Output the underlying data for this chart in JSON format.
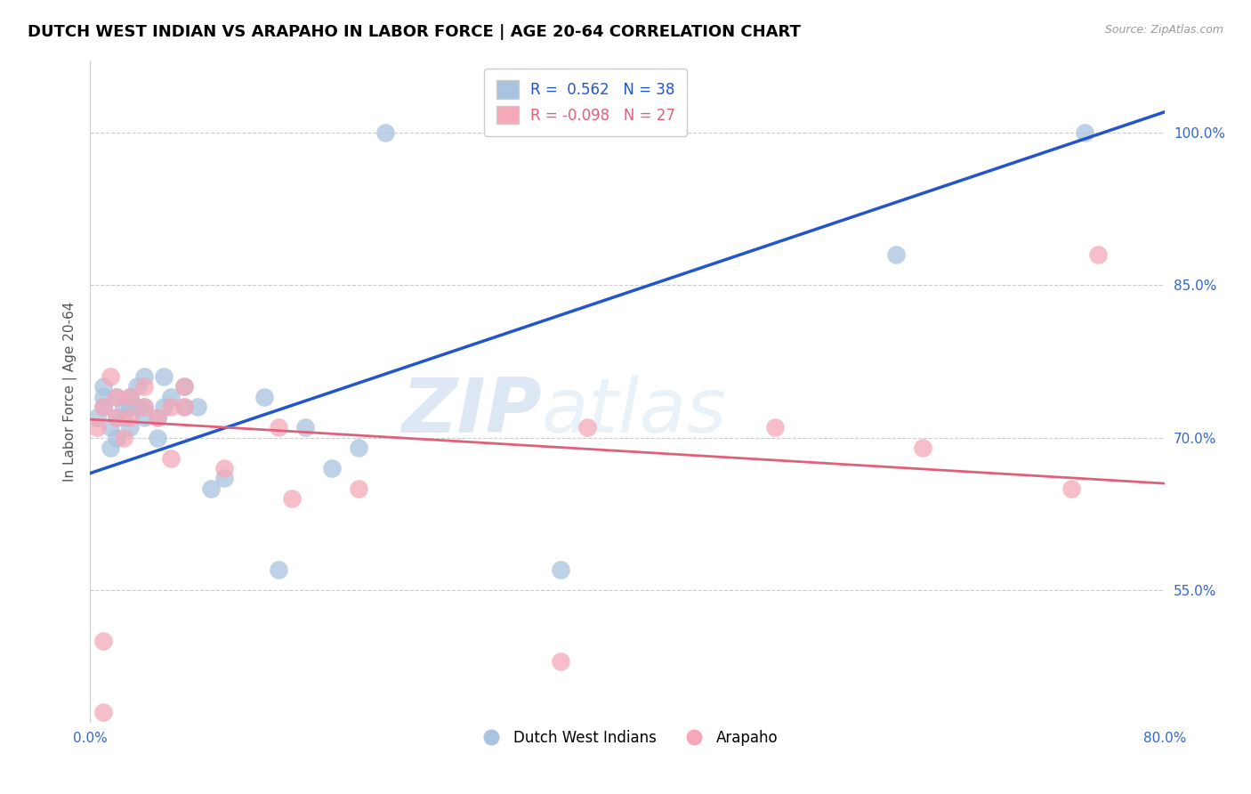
{
  "title": "DUTCH WEST INDIAN VS ARAPAHO IN LABOR FORCE | AGE 20-64 CORRELATION CHART",
  "source": "Source: ZipAtlas.com",
  "ylabel": "In Labor Force | Age 20-64",
  "xlim": [
    0.0,
    0.8
  ],
  "ylim": [
    0.42,
    1.07
  ],
  "xticks": [
    0.0,
    0.1,
    0.2,
    0.3,
    0.4,
    0.5,
    0.6,
    0.7,
    0.8
  ],
  "xticklabels": [
    "0.0%",
    "",
    "",
    "",
    "",
    "",
    "",
    "",
    "80.0%"
  ],
  "ytick_positions": [
    0.55,
    0.7,
    0.85,
    1.0
  ],
  "ytick_labels": [
    "55.0%",
    "70.0%",
    "85.0%",
    "100.0%"
  ],
  "blue_R": 0.562,
  "blue_N": 38,
  "pink_R": -0.098,
  "pink_N": 27,
  "blue_color": "#a8c4e0",
  "pink_color": "#f4a8b8",
  "blue_line_color": "#2255cc",
  "pink_line_color": "#e0607a",
  "blue_scatter_x": [
    0.005,
    0.01,
    0.01,
    0.01,
    0.015,
    0.015,
    0.02,
    0.02,
    0.02,
    0.025,
    0.025,
    0.03,
    0.03,
    0.03,
    0.035,
    0.035,
    0.04,
    0.04,
    0.04,
    0.05,
    0.05,
    0.055,
    0.055,
    0.06,
    0.07,
    0.07,
    0.08,
    0.09,
    0.1,
    0.13,
    0.14,
    0.16,
    0.18,
    0.2,
    0.22,
    0.35,
    0.6,
    0.74
  ],
  "blue_scatter_y": [
    0.72,
    0.73,
    0.74,
    0.75,
    0.69,
    0.71,
    0.7,
    0.72,
    0.74,
    0.72,
    0.73,
    0.71,
    0.73,
    0.74,
    0.73,
    0.75,
    0.72,
    0.73,
    0.76,
    0.7,
    0.72,
    0.73,
    0.76,
    0.74,
    0.73,
    0.75,
    0.73,
    0.65,
    0.66,
    0.74,
    0.57,
    0.71,
    0.67,
    0.69,
    1.0,
    0.57,
    0.88,
    1.0
  ],
  "pink_scatter_x": [
    0.005,
    0.01,
    0.015,
    0.02,
    0.02,
    0.025,
    0.03,
    0.03,
    0.04,
    0.04,
    0.05,
    0.06,
    0.06,
    0.07,
    0.07,
    0.1,
    0.14,
    0.15,
    0.2,
    0.35,
    0.37,
    0.51,
    0.62,
    0.73,
    0.75,
    0.01,
    0.01
  ],
  "pink_scatter_y": [
    0.71,
    0.73,
    0.76,
    0.72,
    0.74,
    0.7,
    0.72,
    0.74,
    0.73,
    0.75,
    0.72,
    0.68,
    0.73,
    0.73,
    0.75,
    0.67,
    0.71,
    0.64,
    0.65,
    0.48,
    0.71,
    0.71,
    0.69,
    0.65,
    0.88,
    0.5,
    0.43
  ],
  "watermark_zip": "ZIP",
  "watermark_atlas": "atlas",
  "blue_line_x": [
    0.0,
    0.8
  ],
  "blue_line_y": [
    0.665,
    1.02
  ],
  "pink_line_x": [
    0.0,
    0.8
  ],
  "pink_line_y": [
    0.718,
    0.655
  ]
}
